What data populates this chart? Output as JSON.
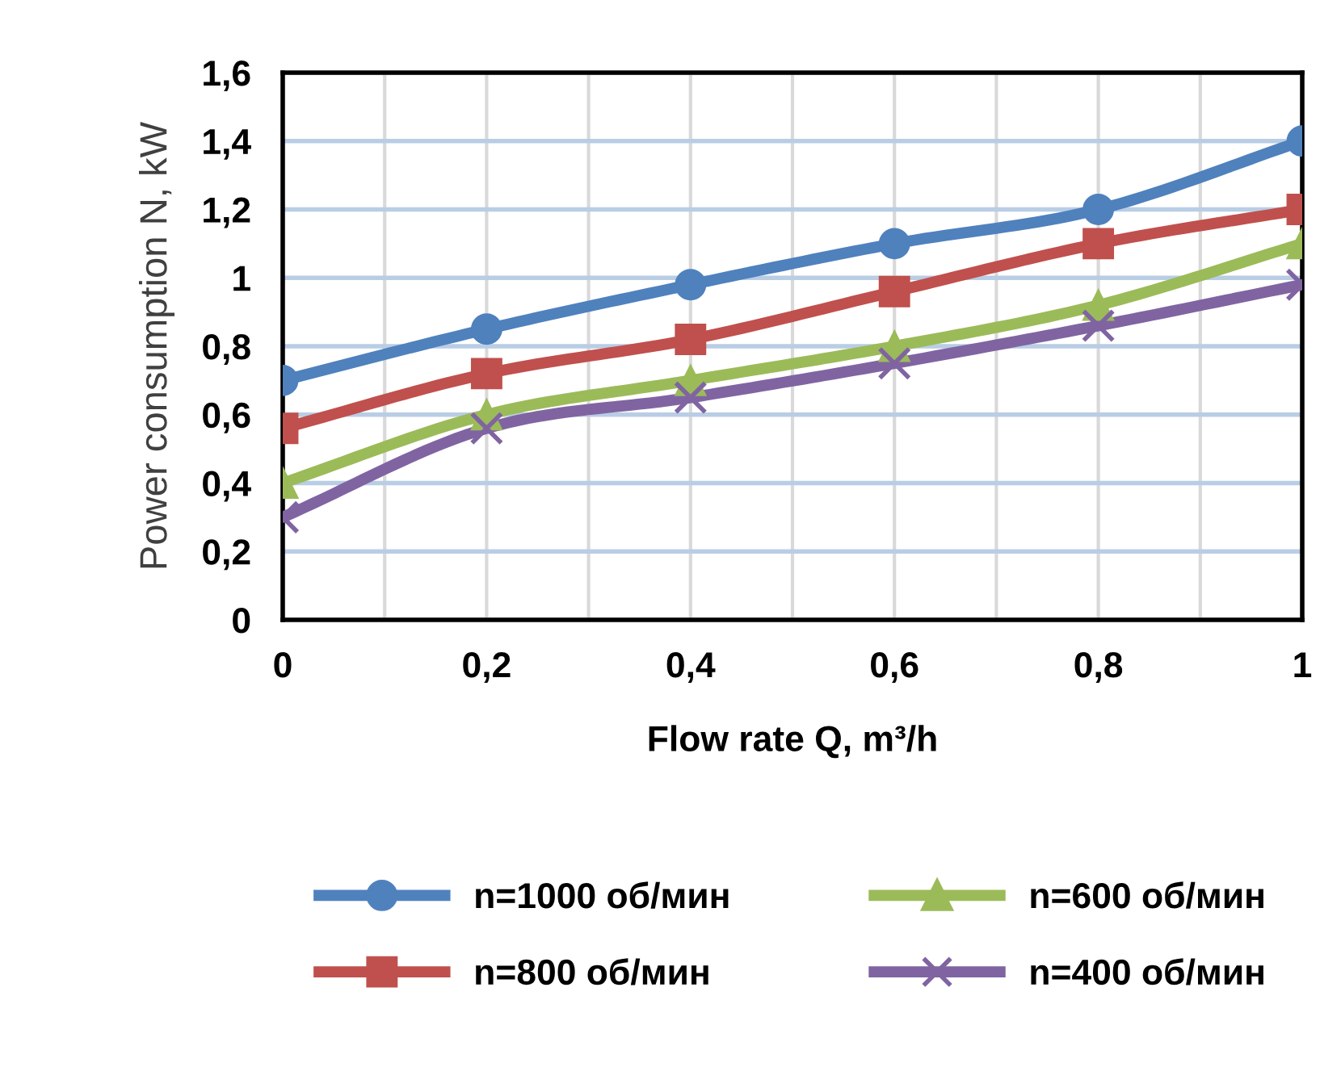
{
  "chart_data": {
    "type": "line",
    "xlabel": "Flow rate Q, m³/h",
    "ylabel": "Power consumption N, kW",
    "x": [
      0,
      0.2,
      0.4,
      0.6,
      0.8,
      1
    ],
    "series": [
      {
        "name": "n=1000 об/мин",
        "color": "#4f81bd",
        "marker": "circle",
        "values": [
          0.7,
          0.85,
          0.98,
          1.1,
          1.2,
          1.4
        ]
      },
      {
        "name": "n=800 об/мин",
        "color": "#c0504d",
        "marker": "square",
        "values": [
          0.56,
          0.72,
          0.82,
          0.96,
          1.1,
          1.2
        ]
      },
      {
        "name": "n=600 об/мин",
        "color": "#9bbb59",
        "marker": "triangle",
        "values": [
          0.4,
          0.6,
          0.7,
          0.8,
          0.92,
          1.1
        ]
      },
      {
        "name": "n=400 об/мин",
        "color": "#8064a2",
        "marker": "cross",
        "values": [
          0.3,
          0.56,
          0.65,
          0.75,
          0.86,
          0.98
        ]
      }
    ],
    "xlim": [
      0,
      1
    ],
    "xticks": [
      0,
      {
        "value": 0.1,
        "label": null
      },
      {
        "value": 0.2,
        "label": "0,2"
      },
      {
        "value": 0.3,
        "label": null
      },
      {
        "value": 0.4,
        "label": "0,4"
      },
      {
        "value": 0.5,
        "label": null
      },
      {
        "value": 0.6,
        "label": "0,6"
      },
      {
        "value": 0.7,
        "label": null
      },
      {
        "value": 0.8,
        "label": "0,8"
      },
      {
        "value": 0.9,
        "label": null
      },
      1
    ],
    "ylim": [
      0,
      1.6
    ],
    "yticks": [
      0,
      {
        "value": 0.2,
        "label": "0,2"
      },
      {
        "value": 0.4,
        "label": "0,4"
      },
      {
        "value": 0.6,
        "label": "0,6"
      },
      {
        "value": 0.8,
        "label": "0,8"
      },
      1,
      {
        "value": 1.2,
        "label": "1,2"
      },
      {
        "value": 1.4,
        "label": "1,4"
      },
      {
        "value": 1.6,
        "label": "1,6"
      }
    ],
    "grid": true,
    "legend": "bottom",
    "line_style": "solid"
  }
}
